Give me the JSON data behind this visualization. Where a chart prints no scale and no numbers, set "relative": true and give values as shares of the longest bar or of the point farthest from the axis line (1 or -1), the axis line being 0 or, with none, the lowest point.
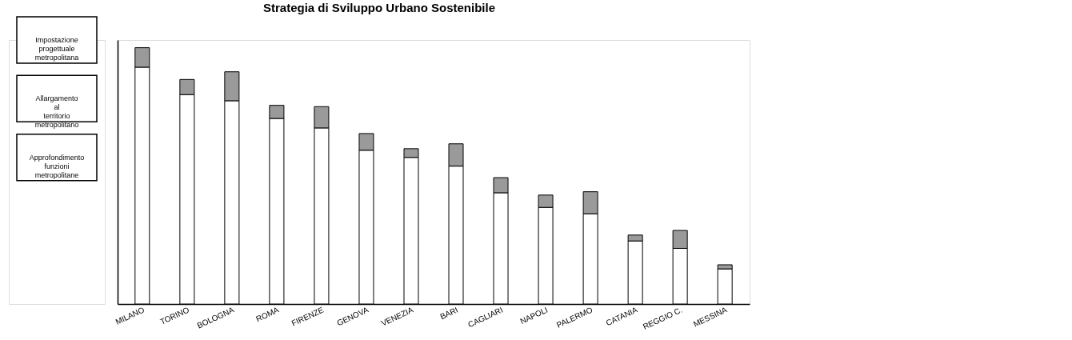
{
  "chart_data": {
    "type": "bar",
    "title": "Strategia di Sviluppo Urbano Sostenibile",
    "categories": [
      "MILANO",
      "TORINO",
      "BOLOGNA",
      "ROMA",
      "FIRENZE",
      "GENOVA",
      "VENEZIA",
      "BARI",
      "CAGLIARI",
      "NAPOLI",
      "PALERMO",
      "CATANIA",
      "REGGIO C.",
      "MESSINA"
    ],
    "relative": true,
    "stacked": true,
    "grid": false,
    "legend": false,
    "series": [
      {
        "color": "#ffffff",
        "values": [
          0.924,
          0.817,
          0.793,
          0.724,
          0.687,
          0.6,
          0.572,
          0.538,
          0.434,
          0.377,
          0.352,
          0.246,
          0.217,
          0.137
        ]
      },
      {
        "color": "#9a9a9a",
        "values": [
          0.076,
          0.059,
          0.113,
          0.051,
          0.083,
          0.065,
          0.034,
          0.087,
          0.059,
          0.048,
          0.086,
          0.023,
          0.07,
          0.016
        ]
      }
    ],
    "annotations": [
      "Impostazione progettuale metropolitana",
      "Allargamento al territorio metropolitano",
      "Approfondimento funzioni metropolitane"
    ]
  }
}
